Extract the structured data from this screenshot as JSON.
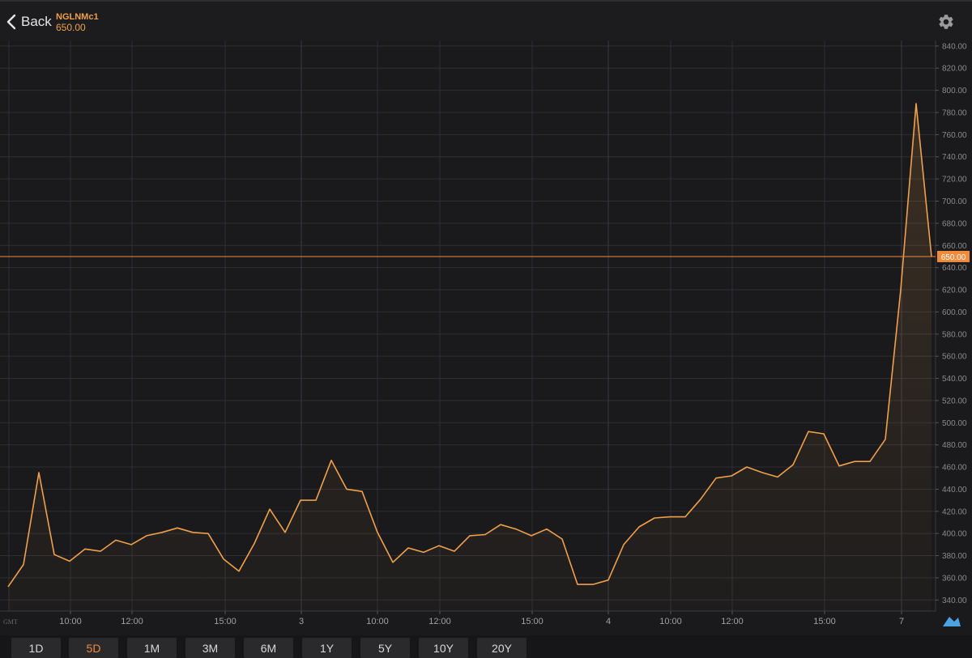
{
  "header": {
    "back_label": "Back",
    "symbol": "NGLNMc1",
    "price": "650.00",
    "settings_icon": "gear-icon",
    "back_icon": "chevron-left-icon"
  },
  "colors": {
    "background": "#1a1a1c",
    "line": "#f0a04b",
    "accent": "#f08a3c",
    "grid": "#2f2f33",
    "axis_text": "#8a8a8a"
  },
  "chart_data": {
    "type": "area",
    "title": "",
    "xlabel": "",
    "ylabel": "",
    "ylim": [
      330,
      845
    ],
    "grid": true,
    "timezone_label": "GMT",
    "current_value_label": "650.00",
    "current_value": 650,
    "y_ticks": [
      340,
      360,
      380,
      400,
      420,
      440,
      460,
      480,
      500,
      520,
      540,
      560,
      580,
      600,
      620,
      640,
      660,
      680,
      700,
      720,
      740,
      760,
      780,
      800,
      820,
      840
    ],
    "x_tick_labels": [
      "10:00",
      "12:00",
      "15:00",
      "3",
      "10:00",
      "12:00",
      "15:00",
      "4",
      "10:00",
      "12:00",
      "15:00",
      "7"
    ],
    "x": [
      0,
      1,
      2,
      3,
      4,
      5,
      6,
      7,
      8,
      9,
      10,
      11,
      12,
      13,
      14,
      15,
      16,
      17,
      18,
      19,
      20,
      21,
      22,
      23,
      24,
      25,
      26,
      27,
      28,
      29,
      30,
      31,
      32,
      33,
      34,
      35,
      36,
      37,
      38,
      39,
      40,
      41,
      42,
      43,
      44,
      45,
      46,
      47,
      48,
      49,
      50,
      51,
      52,
      53,
      54,
      55,
      56,
      57,
      58,
      59,
      60
    ],
    "series": [
      {
        "values": [
          352,
          372,
          455,
          381,
          375,
          386,
          384,
          394,
          390,
          398,
          401,
          405,
          401,
          400,
          377,
          366,
          391,
          422,
          401,
          430,
          430,
          466,
          440,
          438,
          401,
          374,
          387,
          383,
          389,
          384,
          398,
          399,
          408,
          404,
          398,
          404,
          395,
          354,
          354,
          358,
          390,
          406,
          414,
          415,
          415,
          431,
          450,
          452,
          460,
          455,
          451,
          462,
          492,
          490,
          461,
          465,
          465,
          485,
          620,
          788,
          650
        ]
      }
    ]
  },
  "range_tabs": [
    {
      "label": "1D"
    },
    {
      "label": "5D"
    },
    {
      "label": "1M"
    },
    {
      "label": "3M"
    },
    {
      "label": "6M"
    },
    {
      "label": "1Y"
    },
    {
      "label": "5Y"
    },
    {
      "label": "10Y"
    },
    {
      "label": "20Y"
    }
  ],
  "active_range": "5D"
}
